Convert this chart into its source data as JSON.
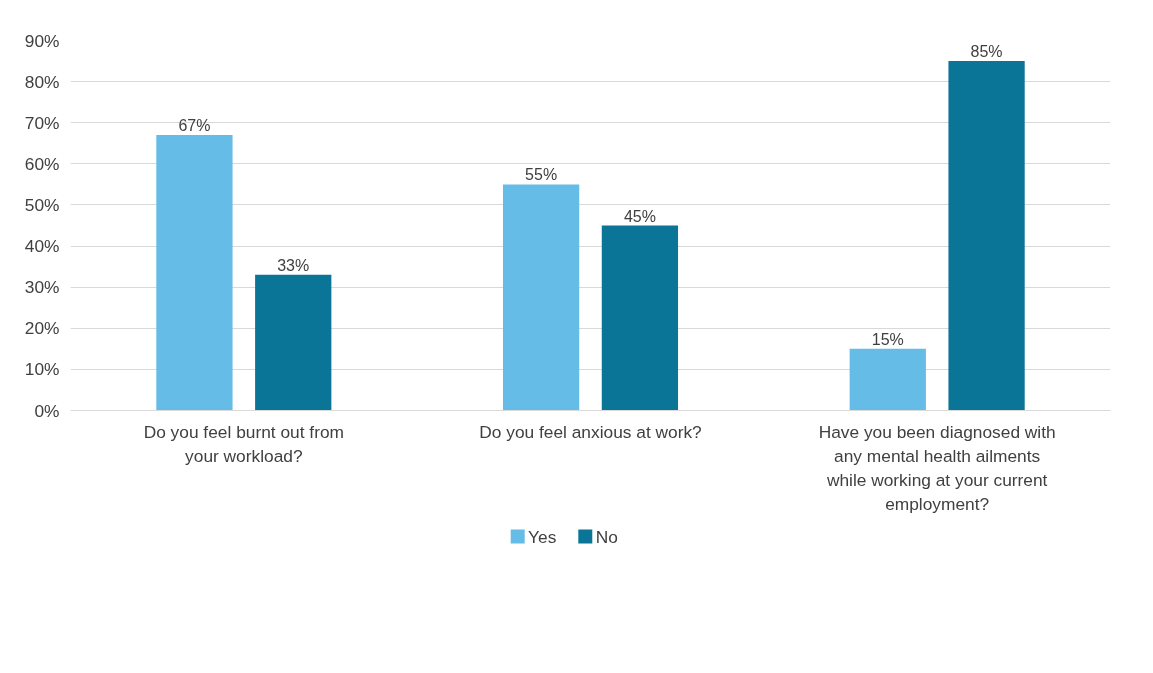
{
  "chart_data": {
    "type": "bar",
    "categories": [
      "Do you feel burnt out from your workload?",
      "Do you feel anxious at work?",
      "Have you been diagnosed with any mental health ailments while working at your current employment?"
    ],
    "series": [
      {
        "name": "Yes",
        "color": "#65bce6",
        "values": [
          67,
          55,
          15
        ],
        "value_labels": [
          "67%",
          "55%",
          "15%"
        ]
      },
      {
        "name": "No",
        "color": "#0b7597",
        "values": [
          33,
          45,
          85
        ],
        "value_labels": [
          "33%",
          "45%",
          "85%"
        ]
      }
    ],
    "ylim": [
      0,
      90
    ],
    "yticks": [
      {
        "value": 0,
        "label": "0%"
      },
      {
        "value": 10,
        "label": "10%"
      },
      {
        "value": 20,
        "label": "20%"
      },
      {
        "value": 30,
        "label": "30%"
      },
      {
        "value": 40,
        "label": "40%"
      },
      {
        "value": 50,
        "label": "50%"
      },
      {
        "value": 60,
        "label": "60%"
      },
      {
        "value": 70,
        "label": "70%"
      },
      {
        "value": 80,
        "label": "80%"
      },
      {
        "value": 90,
        "label": "90%"
      }
    ],
    "grid": "y",
    "legend": "bottom"
  }
}
